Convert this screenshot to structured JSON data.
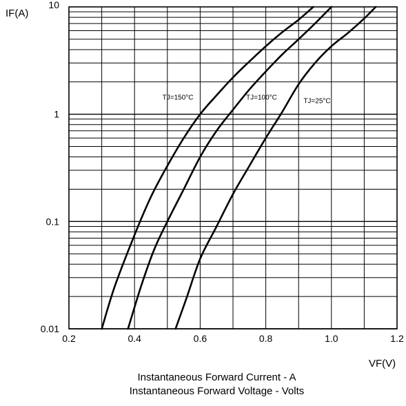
{
  "chart_data": {
    "type": "line",
    "title": "",
    "xlabel": "VF(V)",
    "ylabel": "IF(A)",
    "xscale": "linear",
    "yscale": "log",
    "xlim": [
      0.2,
      1.2
    ],
    "ylim": [
      0.01,
      10
    ],
    "xticks": [
      "0.2",
      "0.4",
      "0.6",
      "0.8",
      "1.0",
      "1.2"
    ],
    "xtick_values": [
      0.2,
      0.4,
      0.6,
      0.8,
      1.0,
      1.2
    ],
    "yticks": [
      "0.01",
      "0.1",
      "1",
      "10"
    ],
    "ytick_values": [
      0.01,
      0.1,
      1,
      10
    ],
    "grid": true,
    "legend": "none",
    "line_color": "#000000",
    "series": [
      {
        "name": "TJ=150°C",
        "x": [
          0.3,
          0.34,
          0.4,
          0.45,
          0.5,
          0.55,
          0.6,
          0.65,
          0.7,
          0.75,
          0.8,
          0.85,
          0.9,
          0.945
        ],
        "y": [
          0.01,
          0.025,
          0.075,
          0.17,
          0.33,
          0.6,
          1.0,
          1.5,
          2.2,
          3.1,
          4.3,
          5.8,
          7.6,
          10
        ]
      },
      {
        "name": "TJ=100°C",
        "x": [
          0.38,
          0.42,
          0.46,
          0.5,
          0.55,
          0.6,
          0.65,
          0.7,
          0.75,
          0.8,
          0.85,
          0.9,
          0.95,
          1.0
        ],
        "y": [
          0.01,
          0.025,
          0.055,
          0.1,
          0.2,
          0.4,
          0.7,
          1.1,
          1.7,
          2.5,
          3.6,
          5.0,
          7.0,
          10
        ]
      },
      {
        "name": "TJ=25°C",
        "x": [
          0.525,
          0.56,
          0.6,
          0.65,
          0.7,
          0.75,
          0.8,
          0.85,
          0.9,
          0.95,
          1.0,
          1.05,
          1.1,
          1.135
        ],
        "y": [
          0.01,
          0.02,
          0.045,
          0.09,
          0.18,
          0.33,
          0.6,
          1.05,
          1.9,
          3.0,
          4.3,
          5.7,
          7.8,
          10
        ]
      }
    ],
    "curve_labels": [
      "TJ=150°C",
      "TJ=100°C",
      "TJ=25°C"
    ]
  },
  "captions": {
    "line1": "Instantaneous Forward Current - A",
    "line2": "Instantaneous Forward Voltage - Volts"
  }
}
